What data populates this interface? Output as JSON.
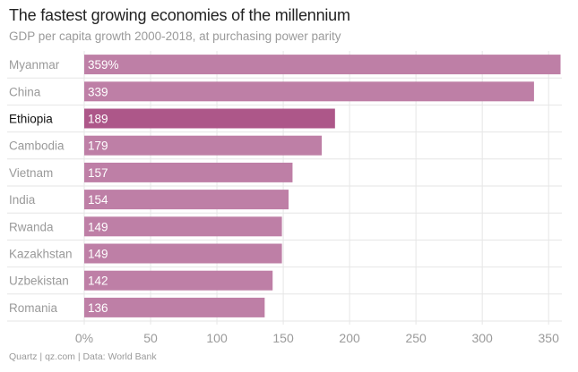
{
  "title": "The fastest growing economies of the millennium",
  "subtitle": "GDP per capita growth 2000-2018, at purchasing power parity",
  "source": "Quartz | qz.com | Data: World Bank",
  "colors": {
    "bar": "#be7fa6",
    "highlight": "#ad5789",
    "grid": "#e6e6e6",
    "label": "#9a9a9a",
    "highlight_label": "#111111"
  },
  "chart_data": {
    "type": "bar",
    "orientation": "horizontal",
    "categories": [
      "Myanmar",
      "China",
      "Ethiopia",
      "Cambodia",
      "Vietnam",
      "India",
      "Rwanda",
      "Kazakhstan",
      "Uzbekistan",
      "Romania"
    ],
    "values": [
      359,
      339,
      189,
      179,
      157,
      154,
      149,
      149,
      142,
      136
    ],
    "value_labels": [
      "359%",
      "339",
      "189",
      "179",
      "157",
      "154",
      "149",
      "149",
      "142",
      "136"
    ],
    "highlight": "Ethiopia",
    "xlim": [
      0,
      360
    ],
    "xticks": [
      0,
      50,
      100,
      150,
      200,
      250,
      300,
      350
    ],
    "xtick_labels": [
      "0%",
      "50",
      "100",
      "150",
      "200",
      "250",
      "300",
      "350"
    ],
    "grid": true
  }
}
